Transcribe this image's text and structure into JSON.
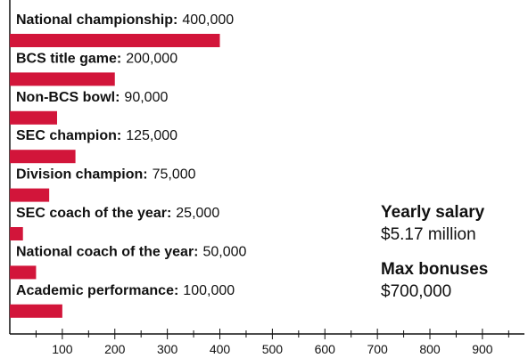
{
  "chart_data": {
    "type": "bar",
    "orientation": "horizontal",
    "categories": [
      "National championship:",
      "BCS title game:",
      "Non-BCS bowl:",
      "SEC champion:",
      "Division champion:",
      "SEC coach of the year:",
      "National coach of the year:",
      "Academic performance:"
    ],
    "values": [
      400,
      200,
      90,
      125,
      75,
      25,
      50,
      100
    ],
    "value_labels": [
      "400,000",
      "200,000",
      "90,000",
      "125,000",
      "75,000",
      "25,000",
      "50,000",
      "100,000"
    ],
    "color": "#d2153a",
    "xlim": [
      0,
      980
    ],
    "xticks": [
      100,
      200,
      300,
      400,
      500,
      600,
      700,
      800,
      900
    ],
    "xminorticks": [
      50,
      150,
      250,
      350,
      450,
      550,
      650,
      750,
      850,
      950
    ],
    "annotations": [
      {
        "heading": "Yearly salary",
        "text": "$5.17 million"
      },
      {
        "heading": "Max bonuses",
        "text": "$700,000"
      }
    ]
  }
}
